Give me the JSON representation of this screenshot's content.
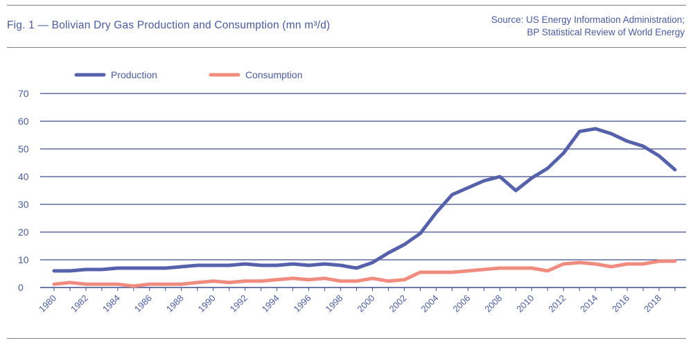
{
  "figure": {
    "title": "Fig. 1 — Bolivian Dry Gas Production and Consumption (mn m³/d)",
    "source_lines": [
      "Source: US Energy Information Administration;",
      "BP Statistical Review of World Energy"
    ]
  },
  "colors": {
    "production": "#5562ab",
    "consumption": "#ef8c7f",
    "grid": "#3d4a8c",
    "text": "#4a5aa0"
  },
  "chart_data": {
    "type": "line",
    "title": "Bolivian Dry Gas Production and Consumption (mn m³/d)",
    "xlabel": "",
    "ylabel": "",
    "x": [
      1980,
      1981,
      1982,
      1983,
      1984,
      1985,
      1986,
      1987,
      1988,
      1989,
      1990,
      1991,
      1992,
      1993,
      1994,
      1995,
      1996,
      1997,
      1998,
      1999,
      2000,
      2001,
      2002,
      2003,
      2004,
      2005,
      2006,
      2007,
      2008,
      2009,
      2010,
      2011,
      2012,
      2013,
      2014,
      2015,
      2016,
      2017,
      2018,
      2019
    ],
    "x_tick_labels": [
      "1980",
      "1982",
      "1984",
      "1986",
      "1988",
      "1990",
      "1992",
      "1994",
      "1996",
      "1998",
      "2000",
      "2002",
      "2004",
      "2006",
      "2008",
      "2010",
      "2012",
      "2014",
      "2016",
      "2018"
    ],
    "y_ticks": [
      0,
      10,
      20,
      30,
      40,
      50,
      60,
      70
    ],
    "ylim": [
      0,
      70
    ],
    "grid": true,
    "legend_position": "top-left",
    "series": [
      {
        "name": "Production",
        "values": [
          6,
          6,
          6.5,
          6.5,
          7,
          7,
          7,
          7,
          7.5,
          8,
          8,
          8,
          8.5,
          8,
          8,
          8.5,
          8,
          8.5,
          8,
          7,
          9,
          12.5,
          15.5,
          19.5,
          27,
          33.5,
          36,
          38.5,
          40,
          35,
          39.5,
          43,
          48.5,
          56.3,
          57.3,
          55.5,
          52.8,
          51,
          47.5,
          42.5
        ]
      },
      {
        "name": "Consumption",
        "values": [
          1.2,
          1.8,
          1.2,
          1.2,
          1.2,
          0.5,
          1.2,
          1.2,
          1.2,
          1.8,
          2.3,
          1.8,
          2.3,
          2.3,
          2.8,
          3.3,
          2.8,
          3.3,
          2.3,
          2.3,
          3.3,
          2.3,
          2.8,
          5.5,
          5.5,
          5.5,
          6,
          6.5,
          7,
          7,
          7,
          6,
          8.5,
          9,
          8.5,
          7.5,
          8.5,
          8.5,
          9.5,
          9.5
        ]
      }
    ]
  }
}
